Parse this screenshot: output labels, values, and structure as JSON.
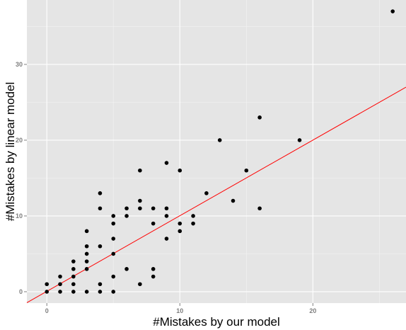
{
  "chart_data": {
    "type": "scatter",
    "title": "",
    "xlabel": "#Mistakes by our model",
    "ylabel": "#Mistakes by linear model",
    "xlim": [
      -1.5,
      27
    ],
    "ylim": [
      -1.5,
      38.5
    ],
    "x_ticks": [
      0,
      10,
      20
    ],
    "y_ticks": [
      0,
      10,
      20,
      30
    ],
    "x_tick_labels": [
      "0",
      "10",
      "20"
    ],
    "y_tick_labels": [
      "0",
      "10",
      "20",
      "30"
    ],
    "grid": true,
    "background_color": "#e5e5e5",
    "grid_color": "#ffffff",
    "point_color": "#000000",
    "fit_line": {
      "color": "#ff0000",
      "intercept": 0.05,
      "slope": 0.998
    },
    "series": [
      {
        "points": [
          [
            0,
            0
          ],
          [
            0,
            1
          ],
          [
            1,
            0
          ],
          [
            1,
            1
          ],
          [
            1,
            2
          ],
          [
            2,
            0
          ],
          [
            2,
            1
          ],
          [
            2,
            2
          ],
          [
            2,
            3
          ],
          [
            2,
            4
          ],
          [
            3,
            0
          ],
          [
            3,
            3
          ],
          [
            3,
            4
          ],
          [
            3,
            5
          ],
          [
            3,
            6
          ],
          [
            3,
            8
          ],
          [
            4,
            0
          ],
          [
            4,
            1
          ],
          [
            4,
            6
          ],
          [
            4,
            11
          ],
          [
            4,
            13
          ],
          [
            5,
            0
          ],
          [
            5,
            2
          ],
          [
            5,
            5
          ],
          [
            5,
            7
          ],
          [
            5,
            9
          ],
          [
            5,
            10
          ],
          [
            6,
            3
          ],
          [
            6,
            10
          ],
          [
            6,
            11
          ],
          [
            7,
            1
          ],
          [
            7,
            11
          ],
          [
            7,
            12
          ],
          [
            7,
            16
          ],
          [
            8,
            2
          ],
          [
            8,
            3
          ],
          [
            8,
            9
          ],
          [
            8,
            11
          ],
          [
            9,
            7
          ],
          [
            9,
            10
          ],
          [
            9,
            11
          ],
          [
            9,
            17
          ],
          [
            10,
            8
          ],
          [
            10,
            9
          ],
          [
            10,
            16
          ],
          [
            11,
            9
          ],
          [
            11,
            10
          ],
          [
            12,
            13
          ],
          [
            13,
            20
          ],
          [
            14,
            12
          ],
          [
            15,
            16
          ],
          [
            16,
            11
          ],
          [
            16,
            23
          ],
          [
            19,
            20
          ],
          [
            26,
            37
          ]
        ]
      }
    ]
  }
}
